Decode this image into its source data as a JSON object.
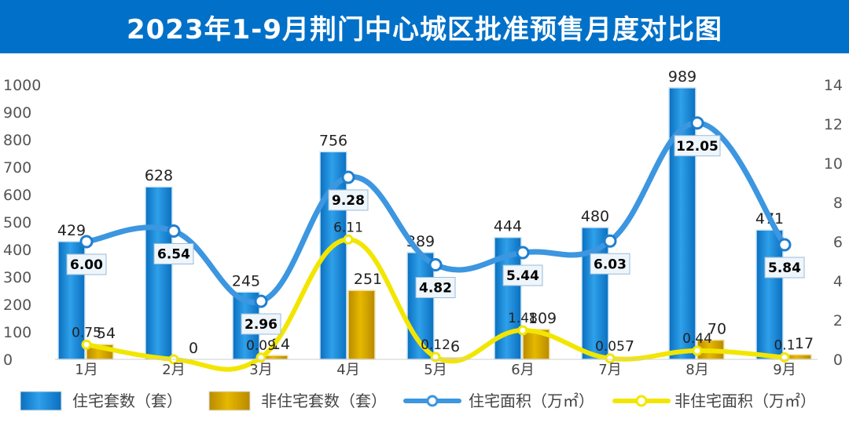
{
  "title": "2023年1-9月荆门中心城区批准预售月度对比图",
  "chart_data": {
    "type": "bar",
    "categories": [
      "1月",
      "2月",
      "3月",
      "4月",
      "5月",
      "6月",
      "7月",
      "8月",
      "9月"
    ],
    "series": [
      {
        "name": "住宅套数（套）",
        "kind": "bar",
        "axis": "left",
        "color": "#1a8ad4",
        "values": [
          429,
          628,
          245,
          756,
          389,
          444,
          480,
          989,
          471
        ]
      },
      {
        "name": "非住宅套数（套）",
        "kind": "bar",
        "axis": "left",
        "color": "#d9a800",
        "values": [
          54,
          0,
          14,
          251,
          6,
          109,
          7,
          70,
          17
        ]
      },
      {
        "name": "住宅面积（万㎡）",
        "kind": "line",
        "axis": "right",
        "color": "#3c96e0",
        "values": [
          6.0,
          6.54,
          2.96,
          9.28,
          4.82,
          5.44,
          6.03,
          12.05,
          5.84
        ],
        "labels": [
          "6.00",
          "6.54",
          "2.96",
          "9.28",
          "4.82",
          "5.44",
          "6.03",
          "12.05",
          "5.84"
        ]
      },
      {
        "name": "非住宅面积（万㎡）",
        "kind": "line",
        "axis": "right",
        "color": "#f2e600",
        "values": [
          0.75,
          0,
          0.09,
          6.11,
          0.12,
          1.48,
          0.05,
          0.44,
          0.1
        ],
        "labels": [
          "0.75",
          "",
          "0.09",
          "6.11",
          "0.12",
          "1.48",
          "0.05",
          "0.44",
          "0.1"
        ]
      }
    ],
    "y_left": {
      "min": 0,
      "max": 1000,
      "ticks": [
        0,
        100,
        200,
        300,
        400,
        500,
        600,
        700,
        800,
        900,
        1000
      ]
    },
    "y_right": {
      "min": 0,
      "max": 14,
      "ticks": [
        0,
        2,
        4,
        6,
        8,
        10,
        12,
        14
      ]
    },
    "legend_position": "bottom",
    "grid": false
  }
}
